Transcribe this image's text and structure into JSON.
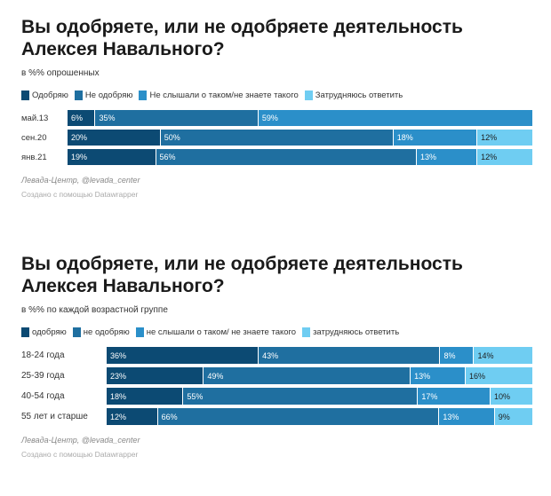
{
  "colors": {
    "approve": "#0c4a73",
    "disapprove": "#1f6fa0",
    "not_heard": "#2b8fc9",
    "hard_to_say": "#6fcdf2"
  },
  "chart_data": [
    {
      "type": "bar",
      "orientation": "horizontal",
      "stacked": true,
      "title": "Вы одобряете, или не одобряете деятельность Алексея Навального?",
      "subtitle": "в %% опрошенных",
      "legend_position": "top",
      "categories": [
        "май.13",
        "сен.20",
        "янв.21"
      ],
      "series": [
        {
          "name": "Одобряю",
          "color_key": "approve",
          "values": [
            6,
            20,
            19
          ]
        },
        {
          "name": "Не одобряю",
          "color_key": "disapprove",
          "values": [
            35,
            50,
            56
          ]
        },
        {
          "name": "Не слышали о таком/не знаете такого",
          "color_key": "not_heard",
          "values": [
            59,
            18,
            13
          ]
        },
        {
          "name": "Затрудняюсь ответить",
          "color_key": "hard_to_say",
          "values": [
            0,
            12,
            12
          ]
        }
      ],
      "xlim": [
        0,
        100
      ],
      "source": "Левада-Центр, @levada_center",
      "credit": "Создано с помощью Datawrapper"
    },
    {
      "type": "bar",
      "orientation": "horizontal",
      "stacked": true,
      "title": "Вы одобряете, или не одобряете деятельность Алексея Навального?",
      "subtitle": "в %% по каждой возрастной группе",
      "legend_position": "top",
      "categories": [
        "18-24 года",
        "25-39 года",
        "40-54 года",
        "55 лет и старше"
      ],
      "series": [
        {
          "name": "одобряю",
          "color_key": "approve",
          "values": [
            36,
            23,
            18,
            12
          ]
        },
        {
          "name": "не одобряю",
          "color_key": "disapprove",
          "values": [
            43,
            49,
            55,
            66
          ]
        },
        {
          "name": "не слышали о таком/ не знаете такого",
          "color_key": "not_heard",
          "values": [
            8,
            13,
            17,
            13
          ]
        },
        {
          "name": "затрудняюсь ответить",
          "color_key": "hard_to_say",
          "values": [
            14,
            16,
            10,
            9
          ]
        }
      ],
      "xlim": [
        0,
        100
      ],
      "source": "Левада-Центр, @levada_center",
      "credit": "Создано с помощью Datawrapper"
    }
  ]
}
